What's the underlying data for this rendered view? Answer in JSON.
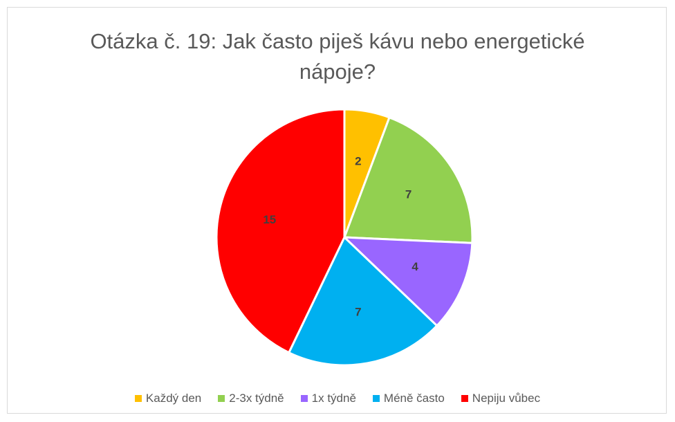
{
  "chart_data": {
    "type": "pie",
    "title": "Otázka č. 19: Jak často piješ kávu nebo energetické nápoje?",
    "categories": [
      "Každý den",
      "2-3x týdně",
      "1x týdně",
      "Méně často",
      "Nepiju vůbec"
    ],
    "values": [
      2,
      7,
      4,
      7,
      15
    ],
    "colors": [
      "#ffc000",
      "#92d050",
      "#9966ff",
      "#00b0f0",
      "#ff0000"
    ],
    "legend": "bottom"
  }
}
